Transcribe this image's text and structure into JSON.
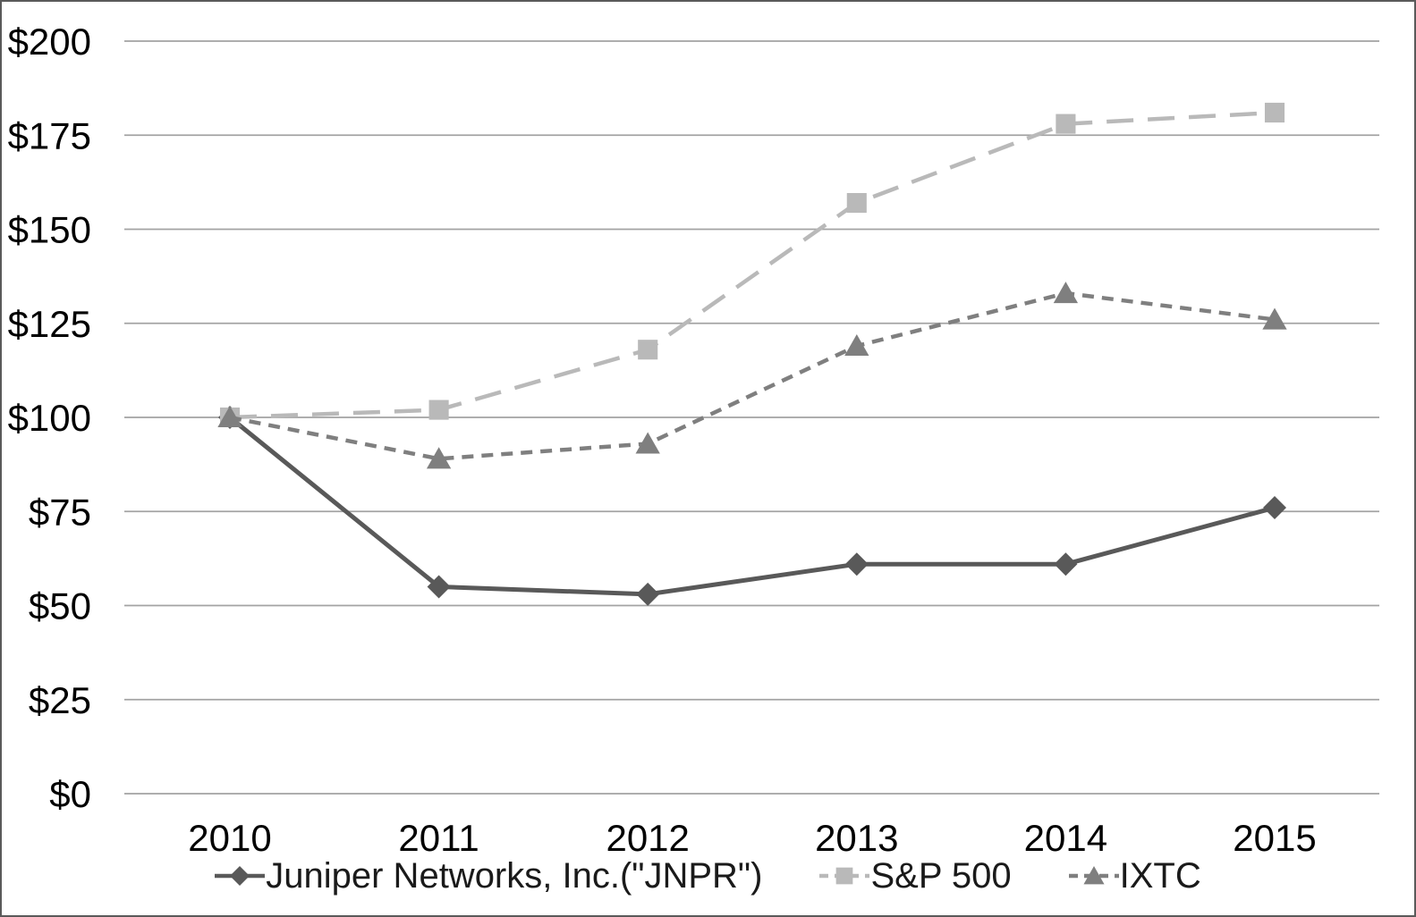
{
  "chart_data": {
    "type": "line",
    "title": "",
    "xlabel": "",
    "ylabel": "",
    "x_categories": [
      "2010",
      "2011",
      "2012",
      "2013",
      "2014",
      "2015"
    ],
    "y_ticks": [
      "$0",
      "$25",
      "$50",
      "$75",
      "$100",
      "$125",
      "$150",
      "$175",
      "$200"
    ],
    "y_tick_values": [
      0,
      25,
      50,
      75,
      100,
      125,
      150,
      175,
      200
    ],
    "ylim": [
      0,
      200
    ],
    "grid": "horizontal",
    "legend_position": "bottom",
    "series": [
      {
        "name": "Juniper Networks, Inc.(\"JNPR\")",
        "marker": "diamond",
        "line_style": "solid",
        "color": "#595959",
        "values": [
          100,
          55,
          53,
          61,
          61,
          76
        ]
      },
      {
        "name": "S&P 500",
        "marker": "square",
        "line_style": "long-dash",
        "color": "#b9b9b9",
        "values": [
          100,
          102,
          118,
          157,
          178,
          181
        ]
      },
      {
        "name": "IXTC",
        "marker": "triangle",
        "line_style": "short-dash",
        "color": "#7f7f7f",
        "values": [
          100,
          89,
          93,
          119,
          133,
          126
        ]
      }
    ]
  },
  "colors": {
    "background": "#ffffff",
    "gridline": "#a3a3a3",
    "border": "#5a5a5a",
    "axis_text": "#000000"
  }
}
